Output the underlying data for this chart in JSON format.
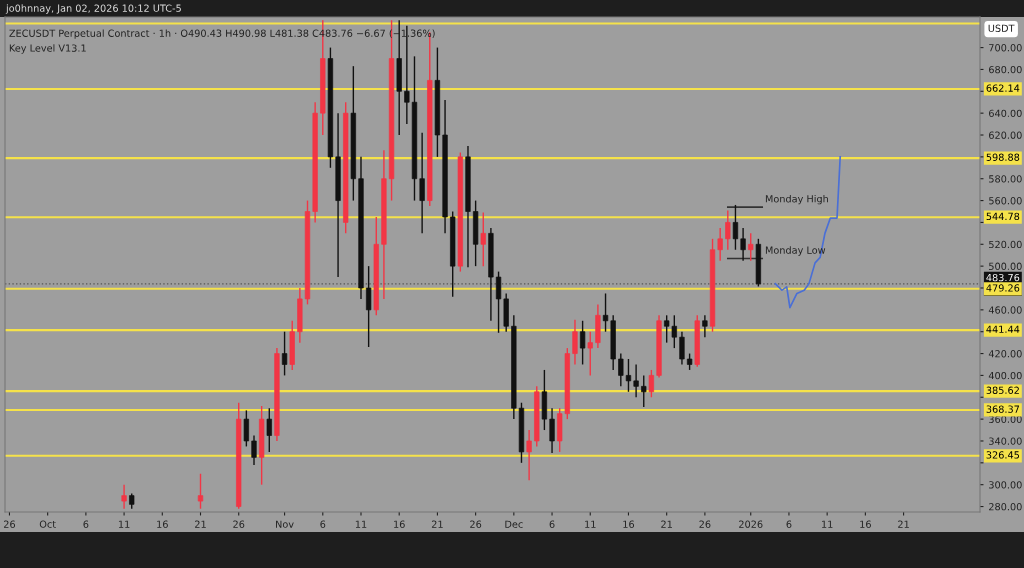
{
  "chart_data": {
    "type": "candlestick",
    "title": "ZECUSDT Perpetual Contract · 1h · O490.43 H490.98 L481.38 C483.76 −6.67 (−1.36%)",
    "subtitle": "Key Level V13.1",
    "ylabel": "USDT",
    "annotations": [
      "jo0hnnay, Jan 02, 2026 10:12 UTC-5"
    ],
    "x": [
      "2025-10-11",
      "2025-10-12",
      "2025-10-21",
      "2025-10-26",
      "2025-10-27",
      "2025-10-28",
      "2025-10-29",
      "2025-10-30",
      "2025-10-31",
      "2025-11-01",
      "2025-11-02",
      "2025-11-03",
      "2025-11-04",
      "2025-11-05",
      "2025-11-06",
      "2025-11-07",
      "2025-11-08",
      "2025-11-09",
      "2025-11-10",
      "2025-11-11",
      "2025-11-12",
      "2025-11-13",
      "2025-11-14",
      "2025-11-15",
      "2025-11-16",
      "2025-11-17",
      "2025-11-18",
      "2025-11-19",
      "2025-11-20",
      "2025-11-21",
      "2025-11-22",
      "2025-11-23",
      "2025-11-24",
      "2025-11-25",
      "2025-11-26",
      "2025-11-27",
      "2025-11-28",
      "2025-11-29",
      "2025-11-30",
      "2025-12-01",
      "2025-12-02",
      "2025-12-03",
      "2025-12-04",
      "2025-12-05",
      "2025-12-06",
      "2025-12-07",
      "2025-12-08",
      "2025-12-09",
      "2025-12-10",
      "2025-12-11",
      "2025-12-12",
      "2025-12-13",
      "2025-12-14",
      "2025-12-15",
      "2025-12-16",
      "2025-12-17",
      "2025-12-18",
      "2025-12-19",
      "2025-12-20",
      "2025-12-21",
      "2025-12-22",
      "2025-12-23",
      "2025-12-24",
      "2025-12-25",
      "2025-12-26",
      "2025-12-27",
      "2025-12-28",
      "2025-12-29",
      "2025-12-30",
      "2025-12-31",
      "2026-01-01",
      "2026-01-02"
    ],
    "ohlc": [
      [
        285,
        300,
        278,
        290
      ],
      [
        290,
        292,
        278,
        282
      ],
      [
        285,
        310,
        278,
        290
      ],
      [
        280,
        375,
        278,
        360
      ],
      [
        360,
        368,
        335,
        340
      ],
      [
        340,
        345,
        318,
        325
      ],
      [
        325,
        372,
        300,
        360
      ],
      [
        360,
        370,
        330,
        345
      ],
      [
        345,
        425,
        340,
        420
      ],
      [
        420,
        440,
        400,
        410
      ],
      [
        410,
        450,
        405,
        440
      ],
      [
        440,
        480,
        430,
        470
      ],
      [
        470,
        560,
        465,
        550
      ],
      [
        550,
        650,
        540,
        640
      ],
      [
        640,
        725,
        620,
        690
      ],
      [
        690,
        700,
        590,
        600
      ],
      [
        600,
        640,
        490,
        560
      ],
      [
        540,
        650,
        530,
        640
      ],
      [
        640,
        683,
        560,
        580
      ],
      [
        580,
        600,
        470,
        480
      ],
      [
        480,
        500,
        426,
        460
      ],
      [
        460,
        545,
        455,
        520
      ],
      [
        520,
        606,
        470,
        580
      ],
      [
        580,
        725,
        560,
        690
      ],
      [
        690,
        725,
        620,
        660
      ],
      [
        660,
        720,
        630,
        650
      ],
      [
        650,
        692,
        560,
        580
      ],
      [
        580,
        622,
        530,
        560
      ],
      [
        560,
        714,
        555,
        670
      ],
      [
        670,
        700,
        600,
        620
      ],
      [
        620,
        652,
        530,
        545
      ],
      [
        545,
        550,
        472,
        500
      ],
      [
        500,
        604,
        495,
        600
      ],
      [
        600,
        610,
        499,
        550
      ],
      [
        550,
        560,
        500,
        520
      ],
      [
        520,
        549,
        500,
        530
      ],
      [
        530,
        535,
        450,
        490
      ],
      [
        490,
        495,
        439,
        470
      ],
      [
        470,
        475,
        440,
        445
      ],
      [
        445,
        455,
        360,
        370
      ],
      [
        370,
        375,
        320,
        330
      ],
      [
        330,
        350,
        304,
        340
      ],
      [
        340,
        390,
        335,
        385
      ],
      [
        385,
        405,
        350,
        360
      ],
      [
        360,
        370,
        329,
        340
      ],
      [
        340,
        370,
        330,
        365
      ],
      [
        365,
        425,
        360,
        420
      ],
      [
        420,
        451,
        410,
        440
      ],
      [
        440,
        450,
        410,
        425
      ],
      [
        425,
        440,
        400,
        430
      ],
      [
        430,
        465,
        425,
        455
      ],
      [
        455,
        475,
        440,
        450
      ],
      [
        450,
        455,
        405,
        415
      ],
      [
        415,
        420,
        390,
        400
      ],
      [
        400,
        415,
        385,
        395
      ],
      [
        395,
        410,
        380,
        390
      ],
      [
        390,
        400,
        371,
        385
      ],
      [
        385,
        405,
        380,
        400
      ],
      [
        400,
        455,
        398,
        450
      ],
      [
        450,
        455,
        430,
        445
      ],
      [
        445,
        455,
        425,
        435
      ],
      [
        435,
        440,
        410,
        415
      ],
      [
        415,
        420,
        405,
        410
      ],
      [
        410,
        455,
        408,
        450
      ],
      [
        450,
        455,
        435,
        445
      ],
      [
        445,
        525,
        440,
        515
      ],
      [
        515,
        535,
        505,
        525
      ],
      [
        525,
        551,
        515,
        540
      ],
      [
        540,
        556,
        515,
        525
      ],
      [
        525,
        535,
        505,
        515
      ],
      [
        515,
        530,
        505,
        520
      ],
      [
        520,
        525,
        481.38,
        483.76
      ]
    ],
    "colors": [
      "#f23645",
      "#111111",
      "#f23645",
      "#f23645",
      "#111111",
      "#111111",
      "#f23645",
      "#111111",
      "#f23645",
      "#111111",
      "#f23645",
      "#f23645",
      "#f23645",
      "#f23645",
      "#f23645",
      "#111111",
      "#111111",
      "#f23645",
      "#111111",
      "#111111",
      "#111111",
      "#f23645",
      "#f23645",
      "#f23645",
      "#111111",
      "#111111",
      "#111111",
      "#111111",
      "#f23645",
      "#111111",
      "#111111",
      "#111111",
      "#f23645",
      "#111111",
      "#111111",
      "#f23645",
      "#111111",
      "#111111",
      "#111111",
      "#111111",
      "#111111",
      "#f23645",
      "#f23645",
      "#111111",
      "#111111",
      "#f23645",
      "#f23645",
      "#f23645",
      "#111111",
      "#f23645",
      "#f23645",
      "#111111",
      "#111111",
      "#111111",
      "#111111",
      "#111111",
      "#111111",
      "#f23645",
      "#f23645",
      "#111111",
      "#111111",
      "#111111",
      "#111111",
      "#f23645",
      "#111111",
      "#f23645",
      "#f23645",
      "#f23645",
      "#111111",
      "#111111",
      "#f23645",
      "#111111"
    ],
    "series": [
      {
        "type": "line",
        "name": "Monday High",
        "color": "#333333",
        "x": [
          "2025-12-29",
          "2026-01-02T12:00"
        ],
        "values": [
          554,
          554
        ]
      },
      {
        "type": "line",
        "name": "Monday Low",
        "color": "#333333",
        "x": [
          "2025-12-29",
          "2026-01-02T12:00"
        ],
        "values": [
          507,
          507
        ]
      },
      {
        "type": "line",
        "color": "#4a6fd6",
        "x": [
          "2026-01-04T05:00",
          "2026-01-05T02:00",
          "2026-01-05T17:00",
          "2026-01-06T03:00",
          "2026-01-07T01:00",
          "2026-01-08T00:00",
          "2026-01-08T15:00",
          "2026-01-09T10:00",
          "2026-01-10T02:00",
          "2026-01-10T17:00",
          "2026-01-11T10:00",
          "2026-01-12T07:00",
          "2026-01-12T17:00"
        ],
        "values": [
          484,
          478,
          481,
          462,
          475,
          478,
          484,
          503,
          508,
          530,
          544,
          544,
          600
        ]
      }
    ],
    "ref_lines": [
      {
        "axis": "y",
        "value": 722,
        "color": "#f5e24a"
      },
      {
        "axis": "y",
        "value": 662.14,
        "label": "662.14",
        "color": "#f5e24a"
      },
      {
        "axis": "y",
        "value": 598.88,
        "label": "598.88",
        "color": "#f5e24a"
      },
      {
        "axis": "y",
        "value": 544.78,
        "label": "544.78",
        "color": "#f5e24a"
      },
      {
        "axis": "y",
        "value": 483.76,
        "label": "483.76\n47:40",
        "color": "#555555",
        "line_style": "dotted"
      },
      {
        "axis": "y",
        "value": 479.26,
        "label": "479.26",
        "color": "#f5e24a"
      },
      {
        "axis": "y",
        "value": 441.44,
        "label": "441.44",
        "color": "#f5e24a"
      },
      {
        "axis": "y",
        "value": 385.62,
        "label": "385.62",
        "color": "#f5e24a"
      },
      {
        "axis": "y",
        "value": 368.37,
        "label": "368.37",
        "color": "#f5e24a"
      },
      {
        "axis": "y",
        "value": 326.45,
        "label": "326.45",
        "color": "#f5e24a"
      }
    ],
    "xlim": [
      "2025-09-25T10:00",
      "2026-01-31"
    ],
    "xticks": [
      {
        "value": "2025-09-26",
        "label": "26"
      },
      {
        "value": "2025-10-01",
        "label": "Oct"
      },
      {
        "value": "2025-10-06",
        "label": "6"
      },
      {
        "value": "2025-10-11",
        "label": "11"
      },
      {
        "value": "2025-10-16",
        "label": "16"
      },
      {
        "value": "2025-10-21",
        "label": "21"
      },
      {
        "value": "2025-10-26",
        "label": "26"
      },
      {
        "value": "2025-11-01",
        "label": "Nov"
      },
      {
        "value": "2025-11-06",
        "label": "6"
      },
      {
        "value": "2025-11-11",
        "label": "11"
      },
      {
        "value": "2025-11-16",
        "label": "16"
      },
      {
        "value": "2025-11-21",
        "label": "21"
      },
      {
        "value": "2025-11-26",
        "label": "26"
      },
      {
        "value": "2025-12-01",
        "label": "Dec"
      },
      {
        "value": "2025-12-06",
        "label": "6"
      },
      {
        "value": "2025-12-11",
        "label": "11"
      },
      {
        "value": "2025-12-16",
        "label": "16"
      },
      {
        "value": "2025-12-21",
        "label": "21"
      },
      {
        "value": "2025-12-26",
        "label": "26"
      },
      {
        "value": "2026-01-01",
        "label": "2026"
      },
      {
        "value": "2026-01-06",
        "label": "6"
      },
      {
        "value": "2026-01-11",
        "label": "11"
      },
      {
        "value": "2026-01-16",
        "label": "16"
      },
      {
        "value": "2026-01-21",
        "label": "21"
      }
    ],
    "ylim": [
      275,
      728
    ],
    "yticks": [
      {
        "value": 280,
        "label": "280.00"
      },
      {
        "value": 300,
        "label": "300.00"
      },
      {
        "value": 320,
        "label": null
      },
      {
        "value": 340,
        "label": "340.00"
      },
      {
        "value": 360,
        "label": "360.00"
      },
      {
        "value": 380,
        "label": null
      },
      {
        "value": 400,
        "label": "400.00"
      },
      {
        "value": 420,
        "label": "420.00"
      },
      {
        "value": 440,
        "label": null
      },
      {
        "value": 460,
        "label": "460.00"
      },
      {
        "value": 480,
        "label": null
      },
      {
        "value": 500,
        "label": "500.00"
      },
      {
        "value": 520,
        "label": "520.00"
      },
      {
        "value": 540,
        "label": null
      },
      {
        "value": 560,
        "label": "560.00"
      },
      {
        "value": 580,
        "label": "580.00"
      },
      {
        "value": 600,
        "label": null
      },
      {
        "value": 620,
        "label": "620.00"
      },
      {
        "value": 640,
        "label": "640.00"
      },
      {
        "value": 660,
        "label": null
      },
      {
        "value": 680,
        "label": "680.00"
      },
      {
        "value": 700,
        "label": "700.00"
      }
    ]
  }
}
